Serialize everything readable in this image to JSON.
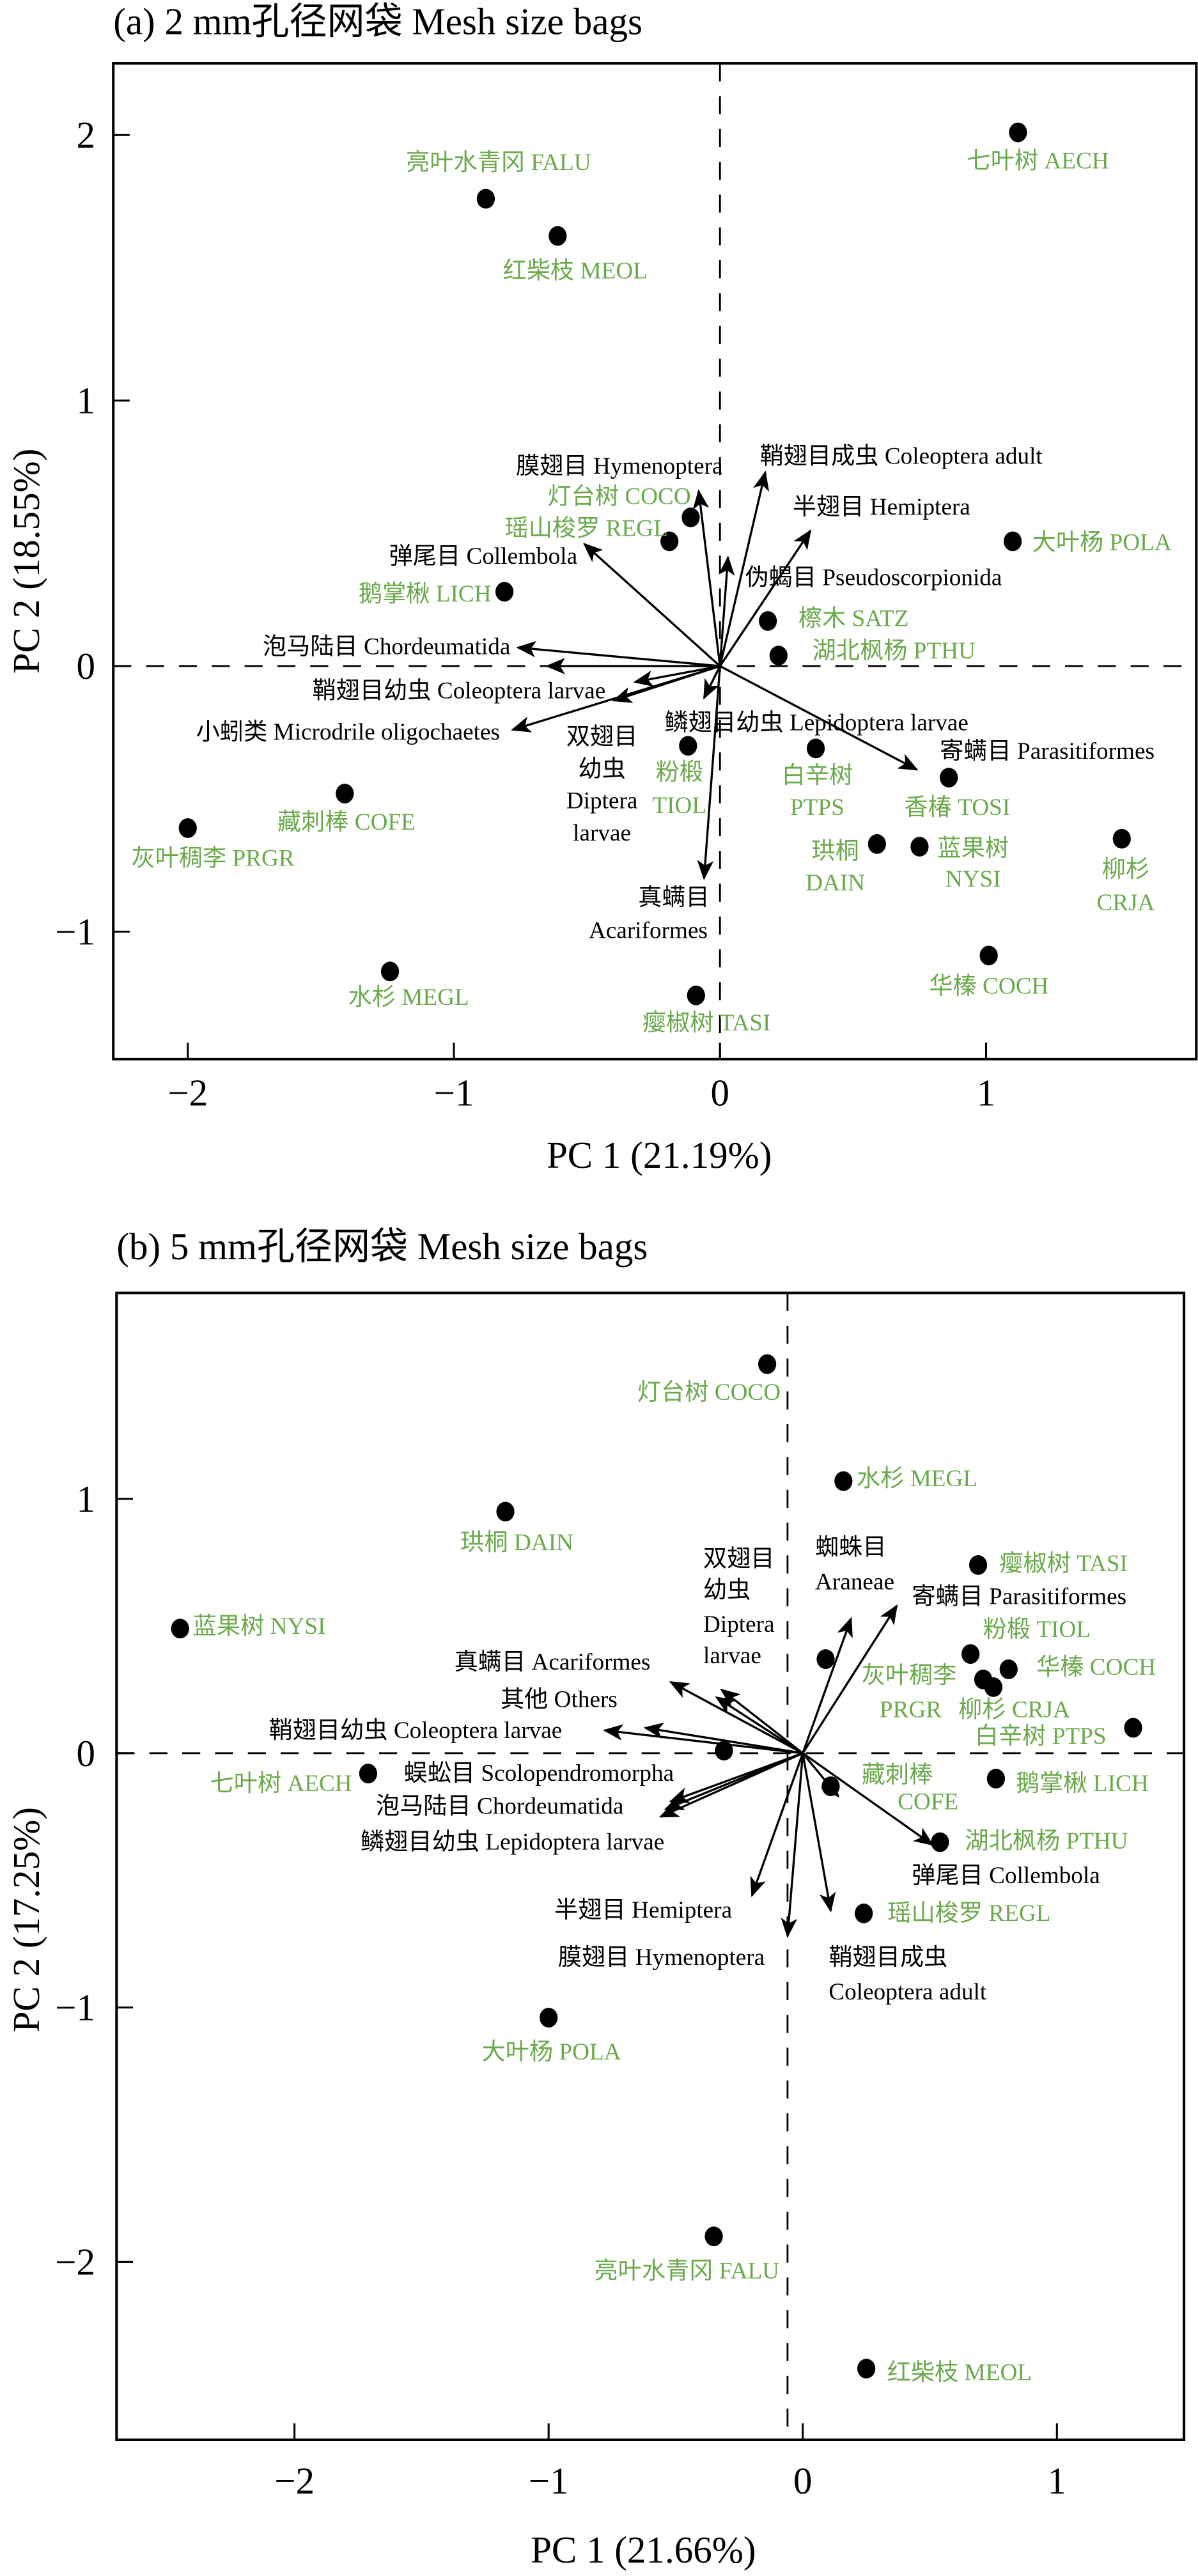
{
  "chart_data": [
    {
      "panel": "a",
      "type": "scatter",
      "title": "(a) 2 mm孔径网袋 Mesh size bags",
      "xlabel": "PC 1 (21.19%)",
      "ylabel": "PC 2 (18.55%)",
      "xlim": [
        -2.28,
        1.79
      ],
      "ylim": [
        -1.48,
        2.27
      ],
      "xticks": [
        -2,
        -1,
        0,
        1
      ],
      "xtick_labels": [
        "−2",
        "−1",
        "0",
        "1"
      ],
      "yticks": [
        -1,
        0,
        1,
        2
      ],
      "ytick_labels": [
        "−1",
        "0",
        "1",
        "2"
      ],
      "reference_lines": {
        "x": 0,
        "y": 0,
        "style": "dashed"
      },
      "grid": false,
      "colors": {
        "site_labels": "#6aaa4b",
        "points": "#000000",
        "vectors": "#000000"
      },
      "points": [
        {
          "label": "亮叶水青冈 FALU",
          "x": -0.88,
          "y": 1.76
        },
        {
          "label": "七叶树 AECH",
          "x": 1.12,
          "y": 2.01
        },
        {
          "label": "红柴枝 MEOL",
          "x": -0.61,
          "y": 1.62
        },
        {
          "label": "灯台树 COCO",
          "x": -0.11,
          "y": 0.56
        },
        {
          "label": "瑶山梭罗 REGL",
          "x": -0.19,
          "y": 0.47
        },
        {
          "label": "鹅掌楸 LICH",
          "x": -0.81,
          "y": 0.28
        },
        {
          "label": "大叶杨 POLA",
          "x": 1.1,
          "y": 0.47
        },
        {
          "label": "檫木 SATZ",
          "x": 0.18,
          "y": 0.17
        },
        {
          "label": "湖北枫杨 PTHU",
          "x": 0.22,
          "y": 0.04
        },
        {
          "label": "粉椴\nTIOL",
          "x": -0.12,
          "y": -0.3
        },
        {
          "label": "白辛树\nPTPS",
          "x": 0.36,
          "y": -0.31
        },
        {
          "label": "香椿 TOSI",
          "x": 0.86,
          "y": -0.42
        },
        {
          "label": "珙桐\nDAIN",
          "x": 0.59,
          "y": -0.67
        },
        {
          "label": "蓝果树\nNYSI",
          "x": 0.75,
          "y": -0.68
        },
        {
          "label": "柳杉\nCRJA",
          "x": 1.51,
          "y": -0.65
        },
        {
          "label": "藏刺棒 COFE",
          "x": -1.41,
          "y": -0.48
        },
        {
          "label": "灰叶稠李 PRGR",
          "x": -2.0,
          "y": -0.61
        },
        {
          "label": "水杉 MEGL",
          "x": -1.24,
          "y": -1.15
        },
        {
          "label": "瘿椒树 TASI",
          "x": -0.09,
          "y": -1.24
        },
        {
          "label": "华榛 COCH",
          "x": 1.01,
          "y": -1.09
        }
      ],
      "vectors": [
        {
          "label": "膜翅目 Hymenoptera",
          "x": -0.08,
          "y": 0.66
        },
        {
          "label": "鞘翅目成虫 Coleoptera adult",
          "x": 0.17,
          "y": 0.73
        },
        {
          "label": "半翅目 Hemiptera",
          "x": 0.34,
          "y": 0.51
        },
        {
          "label": "伪蝎目 Pseudoscorpionida",
          "x": 0.03,
          "y": 0.41
        },
        {
          "label": "弹尾目 Collembola",
          "x": -0.51,
          "y": 0.46
        },
        {
          "label": "泡马陆目 Chordeumatida",
          "x": -0.76,
          "y": 0.07
        },
        {
          "label": "鞘翅目幼虫 Coleoptera larvae",
          "x": -0.65,
          "y": 0.0
        },
        {
          "label": "小蚓类 Microdrile oligochaetes",
          "x": -0.78,
          "y": -0.24
        },
        {
          "label": "双翅目\n幼虫\nDiptera\nlarvae",
          "x": -0.4,
          "y": -0.13
        },
        {
          "label": "",
          "x": -0.32,
          "y": -0.06
        },
        {
          "label": "鳞翅目幼虫 Lepidoptera larvae",
          "x": -0.06,
          "y": -0.12
        },
        {
          "label": "寄螨目 Parasitiformes",
          "x": 0.74,
          "y": -0.39
        },
        {
          "label": "真螨目\nAcariformes",
          "x": -0.06,
          "y": -0.8
        }
      ]
    },
    {
      "panel": "b",
      "type": "scatter",
      "title": "(b) 5 mm孔径网袋 Mesh size bags",
      "xlabel": "PC 1 (21.66%)",
      "ylabel": "PC 2 (17.25%)",
      "xlim": [
        -2.7,
        1.5
      ],
      "ylim": [
        -2.7,
        1.81
      ],
      "xticks": [
        -2,
        -1,
        0,
        1
      ],
      "xtick_labels": [
        "−2",
        "−1",
        "0",
        "1"
      ],
      "yticks": [
        -2,
        -1,
        0,
        1
      ],
      "ytick_labels": [
        "−2",
        "−1",
        "0",
        "1"
      ],
      "reference_lines": {
        "x": -0.06,
        "y": 0,
        "style": "dashed"
      },
      "grid": false,
      "colors": {
        "site_labels": "#6aaa4b",
        "points": "#000000",
        "vectors": "#000000"
      },
      "points": [
        {
          "label": "灯台树 COCO",
          "x": -0.14,
          "y": 1.53
        },
        {
          "label": "水杉 MEGL",
          "x": 0.16,
          "y": 1.07
        },
        {
          "label": "珙桐 DAIN",
          "x": -1.17,
          "y": 0.95
        },
        {
          "label": "蓝果树 NYSI",
          "x": -2.45,
          "y": 0.49
        },
        {
          "label": "瘿椒树 TASI",
          "x": 0.69,
          "y": 0.74
        },
        {
          "label": "粉椴 TIOL",
          "x": 0.66,
          "y": 0.39
        },
        {
          "label": "华榛 COCH",
          "x": 0.81,
          "y": 0.33
        },
        {
          "label": "灰叶稠李\nPRGR",
          "x": 0.71,
          "y": 0.29
        },
        {
          "label": "柳杉 CRJA",
          "x": 0.75,
          "y": 0.26
        },
        {
          "label": "白辛树 PTPS",
          "x": 1.3,
          "y": 0.1
        },
        {
          "label": "鹅掌楸 LICH",
          "x": 0.76,
          "y": -0.1
        },
        {
          "label": "藏刺棒\nCOFE",
          "x": 0.11,
          "y": -0.13
        },
        {
          "label": "湖北枫杨 PTHU",
          "x": 0.54,
          "y": -0.35
        },
        {
          "label": "瑶山梭罗 REGL",
          "x": 0.24,
          "y": -0.63
        },
        {
          "label": "大叶杨 POLA",
          "x": -1.0,
          "y": -1.04
        },
        {
          "label": "亮叶水青冈 FALU",
          "x": -0.35,
          "y": -1.9
        },
        {
          "label": "红柴枝 MEOL",
          "x": 0.25,
          "y": -2.42
        },
        {
          "label": "七叶树 AECH",
          "x": -1.71,
          "y": -0.08
        },
        {
          "label": "",
          "x": 0.09,
          "y": 0.37
        },
        {
          "label": "",
          "x": -0.31,
          "y": 0.01
        }
      ],
      "vectors": [
        {
          "label": "蜘蛛目\nAraneae",
          "x": 0.19,
          "y": 0.53
        },
        {
          "label": "寄螨目 Parasitiformes",
          "x": 0.37,
          "y": 0.58
        },
        {
          "label": "双翅目\n幼虫\nDiptera\nlarvae",
          "x": -0.34,
          "y": 0.22
        },
        {
          "label": "其他 Others",
          "x": -0.32,
          "y": 0.25
        },
        {
          "label": "真螨目 Acariformes",
          "x": -0.52,
          "y": 0.28
        },
        {
          "label": "鞘翅目幼虫 Coleoptera larvae",
          "x": -0.78,
          "y": 0.09
        },
        {
          "label": "",
          "x": -0.62,
          "y": 0.1
        },
        {
          "label": "蜈蚣目 Scolopendromorpha",
          "x": -0.52,
          "y": -0.19
        },
        {
          "label": "泡马陆目 Chordeumatida",
          "x": -0.56,
          "y": -0.25
        },
        {
          "label": "鳞翅目幼虫 Lepidoptera larvae",
          "x": -0.54,
          "y": -0.22
        },
        {
          "label": "半翅目 Hemiptera",
          "x": -0.2,
          "y": -0.56
        },
        {
          "label": "膜翅目 Hymenoptera",
          "x": -0.06,
          "y": -0.72
        },
        {
          "label": "鞘翅目成虫\nColeoptera adult",
          "x": 0.11,
          "y": -0.62
        },
        {
          "label": "弹尾目 Collembola",
          "x": 0.51,
          "y": -0.36
        },
        {
          "label": "",
          "x": 0.14,
          "y": -0.17
        }
      ]
    }
  ]
}
